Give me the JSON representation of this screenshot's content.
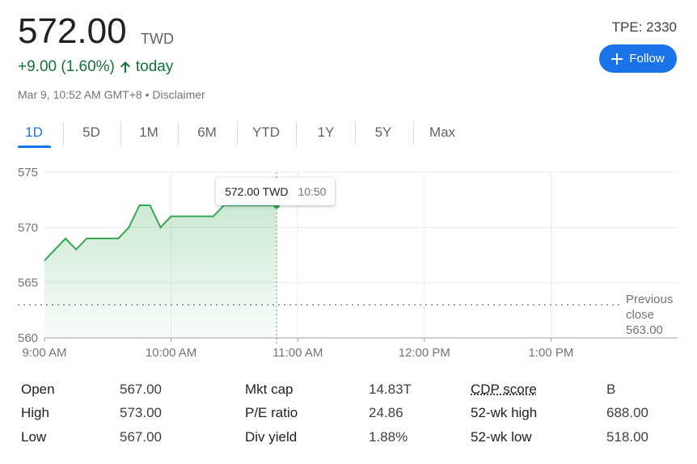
{
  "header": {
    "price": "572.00",
    "currency": "TWD",
    "change": "+9.00 (1.60%)",
    "period": "today",
    "timestamp": "Mar 9, 10:52 AM GMT+8",
    "separator": "•",
    "disclaimer": "Disclaimer",
    "ticker": "TPE: 2330",
    "follow": "Follow"
  },
  "tabs": {
    "items": [
      "1D",
      "5D",
      "1M",
      "6M",
      "YTD",
      "1Y",
      "5Y",
      "Max"
    ],
    "selected": "1D"
  },
  "chart_data": {
    "type": "line",
    "x": [
      540,
      550,
      555,
      560,
      575,
      580,
      585,
      590,
      595,
      600,
      620,
      625,
      650
    ],
    "series": [
      {
        "name": "TPE: 2330",
        "color": "#34a853",
        "values": [
          567,
          569,
          568,
          569,
          569,
          570,
          572,
          572,
          570,
          571,
          571,
          572,
          572
        ]
      }
    ],
    "xlim": [
      540,
      840
    ],
    "xticks": [
      {
        "value": 540,
        "label": "9:00 AM"
      },
      {
        "value": 600,
        "label": "10:00 AM"
      },
      {
        "value": 660,
        "label": "11:00 AM"
      },
      {
        "value": 720,
        "label": "12:00 PM"
      },
      {
        "value": 780,
        "label": "1:00 PM"
      }
    ],
    "ylim": [
      560,
      575
    ],
    "yticks": [
      560,
      565,
      570,
      575
    ],
    "grid": true,
    "previous_close": {
      "label": "Previous close",
      "value": 563,
      "value_label": "563.00"
    },
    "tooltip": {
      "value_label": "572.00 TWD",
      "time": "10:50"
    }
  },
  "stats": {
    "rows": [
      [
        [
          "Open",
          "567.00"
        ],
        [
          "Mkt cap",
          "14.83T"
        ],
        [
          "CDP score",
          "B"
        ]
      ],
      [
        [
          "High",
          "573.00"
        ],
        [
          "P/E ratio",
          "24.86"
        ],
        [
          "52-wk high",
          "688.00"
        ]
      ],
      [
        [
          "Low",
          "567.00"
        ],
        [
          "Div yield",
          "1.88%"
        ],
        [
          "52-wk low",
          "518.00"
        ]
      ]
    ]
  }
}
